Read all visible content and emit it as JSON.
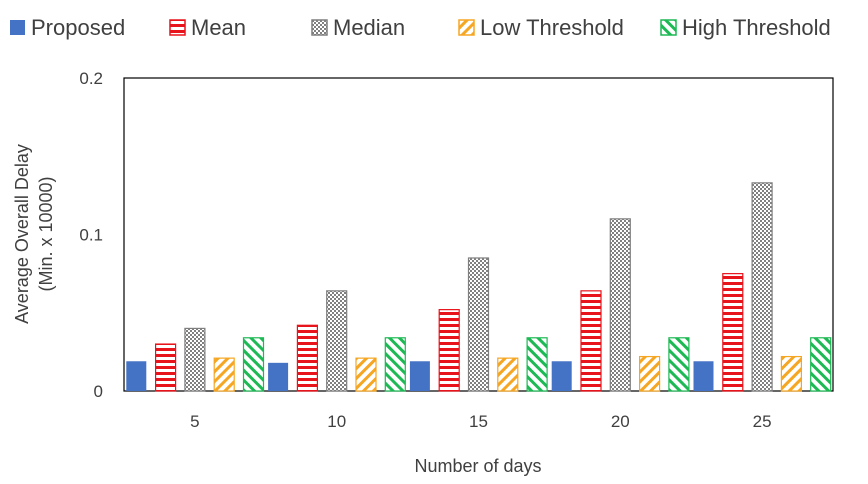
{
  "chart_data": {
    "type": "bar",
    "categories": [
      "5",
      "10",
      "15",
      "20",
      "25"
    ],
    "series": [
      {
        "name": "Proposed",
        "values": [
          0.019,
          0.018,
          0.019,
          0.019,
          0.019
        ],
        "color": "#4472C4",
        "pattern": "solid"
      },
      {
        "name": "Mean",
        "values": [
          0.03,
          0.042,
          0.052,
          0.064,
          0.075
        ],
        "color": "#E8141C",
        "pattern": "horizontal-stripes"
      },
      {
        "name": "Median",
        "values": [
          0.04,
          0.064,
          0.085,
          0.11,
          0.133
        ],
        "color": "#7F7F7F",
        "pattern": "checkerboard"
      },
      {
        "name": "Low Threshold",
        "values": [
          0.021,
          0.021,
          0.021,
          0.022,
          0.022
        ],
        "color": "#F5A623",
        "pattern": "diagonal-stripes"
      },
      {
        "name": "High Threshold",
        "values": [
          0.034,
          0.034,
          0.034,
          0.034,
          0.034
        ],
        "color": "#1DB954",
        "pattern": "diagonal-stripes"
      }
    ],
    "ylim": [
      0,
      0.2
    ],
    "yticks": [
      "0",
      "0.1",
      "0.2"
    ],
    "xlabel": "Number of days",
    "ylabel_line1": "Average Overall Delay",
    "ylabel_line2": "(Min. x 10000)",
    "legend_position": "top",
    "grid": false
  }
}
